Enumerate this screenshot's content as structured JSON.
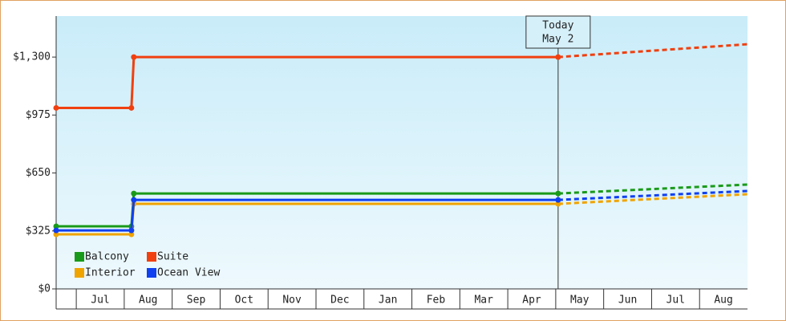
{
  "chart_data": {
    "type": "line",
    "x": [
      -0.42,
      1.15,
      1.2,
      10.05,
      14
    ],
    "forecast_from": 3,
    "series": [
      {
        "name": "Balcony",
        "color": "#1a9a1a",
        "values": [
          351,
          351,
          535,
          535,
          585
        ]
      },
      {
        "name": "Suite",
        "color": "#f04010",
        "values": [
          1015,
          1015,
          1300,
          1300,
          1372
        ]
      },
      {
        "name": "Interior",
        "color": "#f0a400",
        "values": [
          306,
          306,
          477,
          477,
          531
        ]
      },
      {
        "name": "Ocean View",
        "color": "#1040f0",
        "values": [
          328,
          328,
          499,
          499,
          549
        ]
      }
    ],
    "xlim": [
      -0.42,
      14
    ],
    "xticks": [
      {
        "value": 0.5,
        "label": "Jul"
      },
      {
        "value": 1.5,
        "label": "Aug"
      },
      {
        "value": 2.5,
        "label": "Sep"
      },
      {
        "value": 3.5,
        "label": "Oct"
      },
      {
        "value": 4.5,
        "label": "Nov"
      },
      {
        "value": 5.5,
        "label": "Dec"
      },
      {
        "value": 6.5,
        "label": "Jan"
      },
      {
        "value": 7.5,
        "label": "Feb"
      },
      {
        "value": 8.5,
        "label": "Mar"
      },
      {
        "value": 9.5,
        "label": "Apr"
      },
      {
        "value": 10.5,
        "label": "May"
      },
      {
        "value": 11.5,
        "label": "Jun"
      },
      {
        "value": 12.5,
        "label": "Jul"
      },
      {
        "value": 13.5,
        "label": "Aug"
      }
    ],
    "ylim": [
      0,
      1530
    ],
    "yticks": [
      {
        "value": 0,
        "label": "$0"
      },
      {
        "value": 325,
        "label": "$325"
      },
      {
        "value": 650,
        "label": "$650"
      },
      {
        "value": 975,
        "label": "$975"
      },
      {
        "value": 1300,
        "label": "$1,300"
      }
    ],
    "annotation": {
      "x": 10.05,
      "lines": [
        "Today",
        "May 2"
      ]
    },
    "legend": "bottom-left"
  }
}
